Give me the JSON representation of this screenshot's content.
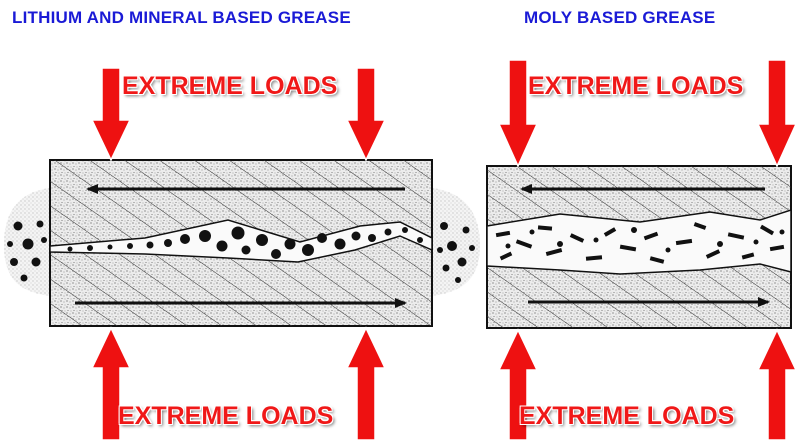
{
  "titles": {
    "left": "LITHIUM AND MINERAL BASED GREASE",
    "right": "MOLY BASED GREASE"
  },
  "labels": {
    "left_top": "EXTREME LOADS",
    "right_top": "EXTREME LOADS",
    "left_bottom": "EXTREME LOADS",
    "right_bottom": "EXTREME LOADS"
  },
  "colors": {
    "title": "#1a1ad6",
    "load_label": "#f01818",
    "arrow": "#ee1111",
    "particle": "#111111"
  }
}
